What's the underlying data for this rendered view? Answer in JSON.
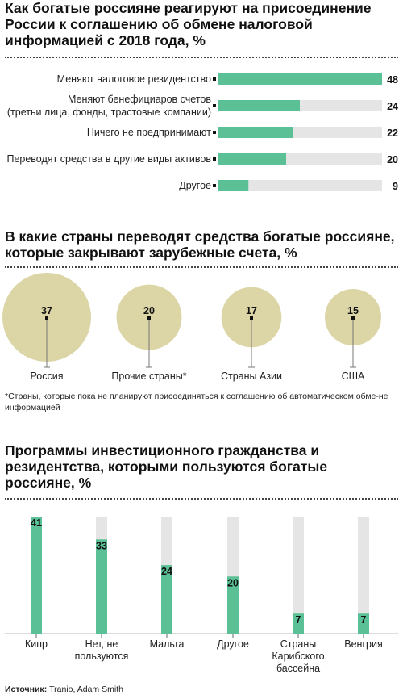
{
  "colors": {
    "green": "#5bc095",
    "gray": "#e5e5e5",
    "beige": "#dcd6a7",
    "ink": "#111111"
  },
  "chart_data": [
    {
      "type": "bar",
      "orientation": "horizontal",
      "title": "Как богатые россияне реагируют на присоединение России к соглашению об обмене налоговой информацией с 2018 года, %",
      "categories": [
        "Меняют налоговое резидентство",
        "Меняют бенефициаров счетов\n(третьи лица, фонды, трастовые компании)",
        "Ничего не предпринимают",
        "Переводят средства в другие виды активов",
        "Другое"
      ],
      "values": [
        48,
        24,
        22,
        20,
        9
      ],
      "xlim": [
        0,
        48
      ]
    },
    {
      "type": "bubble",
      "title": "В какие страны переводят средства богатые россияне, которые закрывают зарубежные счета, %",
      "categories": [
        "Россия",
        "Прочие страны*",
        "Страны Азии",
        "США"
      ],
      "values": [
        37,
        20,
        17,
        15
      ]
    },
    {
      "type": "bar",
      "orientation": "vertical",
      "title": "Программы инвестиционного гражданства и резидентства, которыми пользуются богатые россияне, %",
      "categories": [
        "Кипр",
        "Нет, не\nпользуются",
        "Мальта",
        "Другое",
        "Страны\nКарибского\nбассейна",
        "Венгрия"
      ],
      "values": [
        41,
        33,
        24,
        20,
        7,
        7
      ],
      "ylim": [
        0,
        41
      ]
    }
  ],
  "footnote": "*Страны, которые пока не планируют присоединяться к соглашению об автоматическом обме-не информацией",
  "source": {
    "label": "Источник:",
    "text": "Tranio, Adam Smith"
  }
}
